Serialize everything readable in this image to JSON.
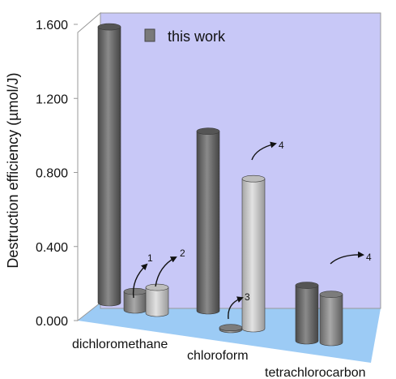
{
  "chart_data": {
    "type": "bar",
    "style": "3d-cylinder",
    "ylabel": "Destruction efficiency (µmol/J)",
    "ytick_labels": [
      "0.000",
      "0.400",
      "0.800",
      "1.200",
      "1.600"
    ],
    "ylim": [
      0,
      1.6
    ],
    "categories": [
      "dichloromethane",
      "chloroform",
      "tetrachlorocarbon"
    ],
    "legend": {
      "label": "this work",
      "position": "top-left"
    },
    "grid": false,
    "bars": [
      {
        "category": "dichloromethane",
        "value": 1.49,
        "series": "this work",
        "color": "#6b6b6b"
      },
      {
        "category": "dichloromethane",
        "value": 0.1,
        "ref": "1",
        "color": "#8c8c8c"
      },
      {
        "category": "dichloromethane",
        "value": 0.14,
        "ref": "2",
        "color": "#c4c4c4"
      },
      {
        "category": "chloroform",
        "value": 0.97,
        "series": "this work",
        "color": "#6b6b6b"
      },
      {
        "category": "chloroform",
        "value": 0.01,
        "ref": "3",
        "color": "#8c8c8c"
      },
      {
        "category": "chloroform",
        "value": 0.81,
        "ref": "4",
        "color": "#c4c4c4"
      },
      {
        "category": "tetrachlorocarbon",
        "value": 0.3,
        "series": "this work",
        "color": "#6b6b6b"
      },
      {
        "category": "tetrachlorocarbon",
        "value": 0.26,
        "ref": "4",
        "color": "#8c8c8c"
      }
    ],
    "colors": {
      "back_wall": "#c8c8f7",
      "floor": "#9ccbf5",
      "edge": "#999999"
    }
  }
}
